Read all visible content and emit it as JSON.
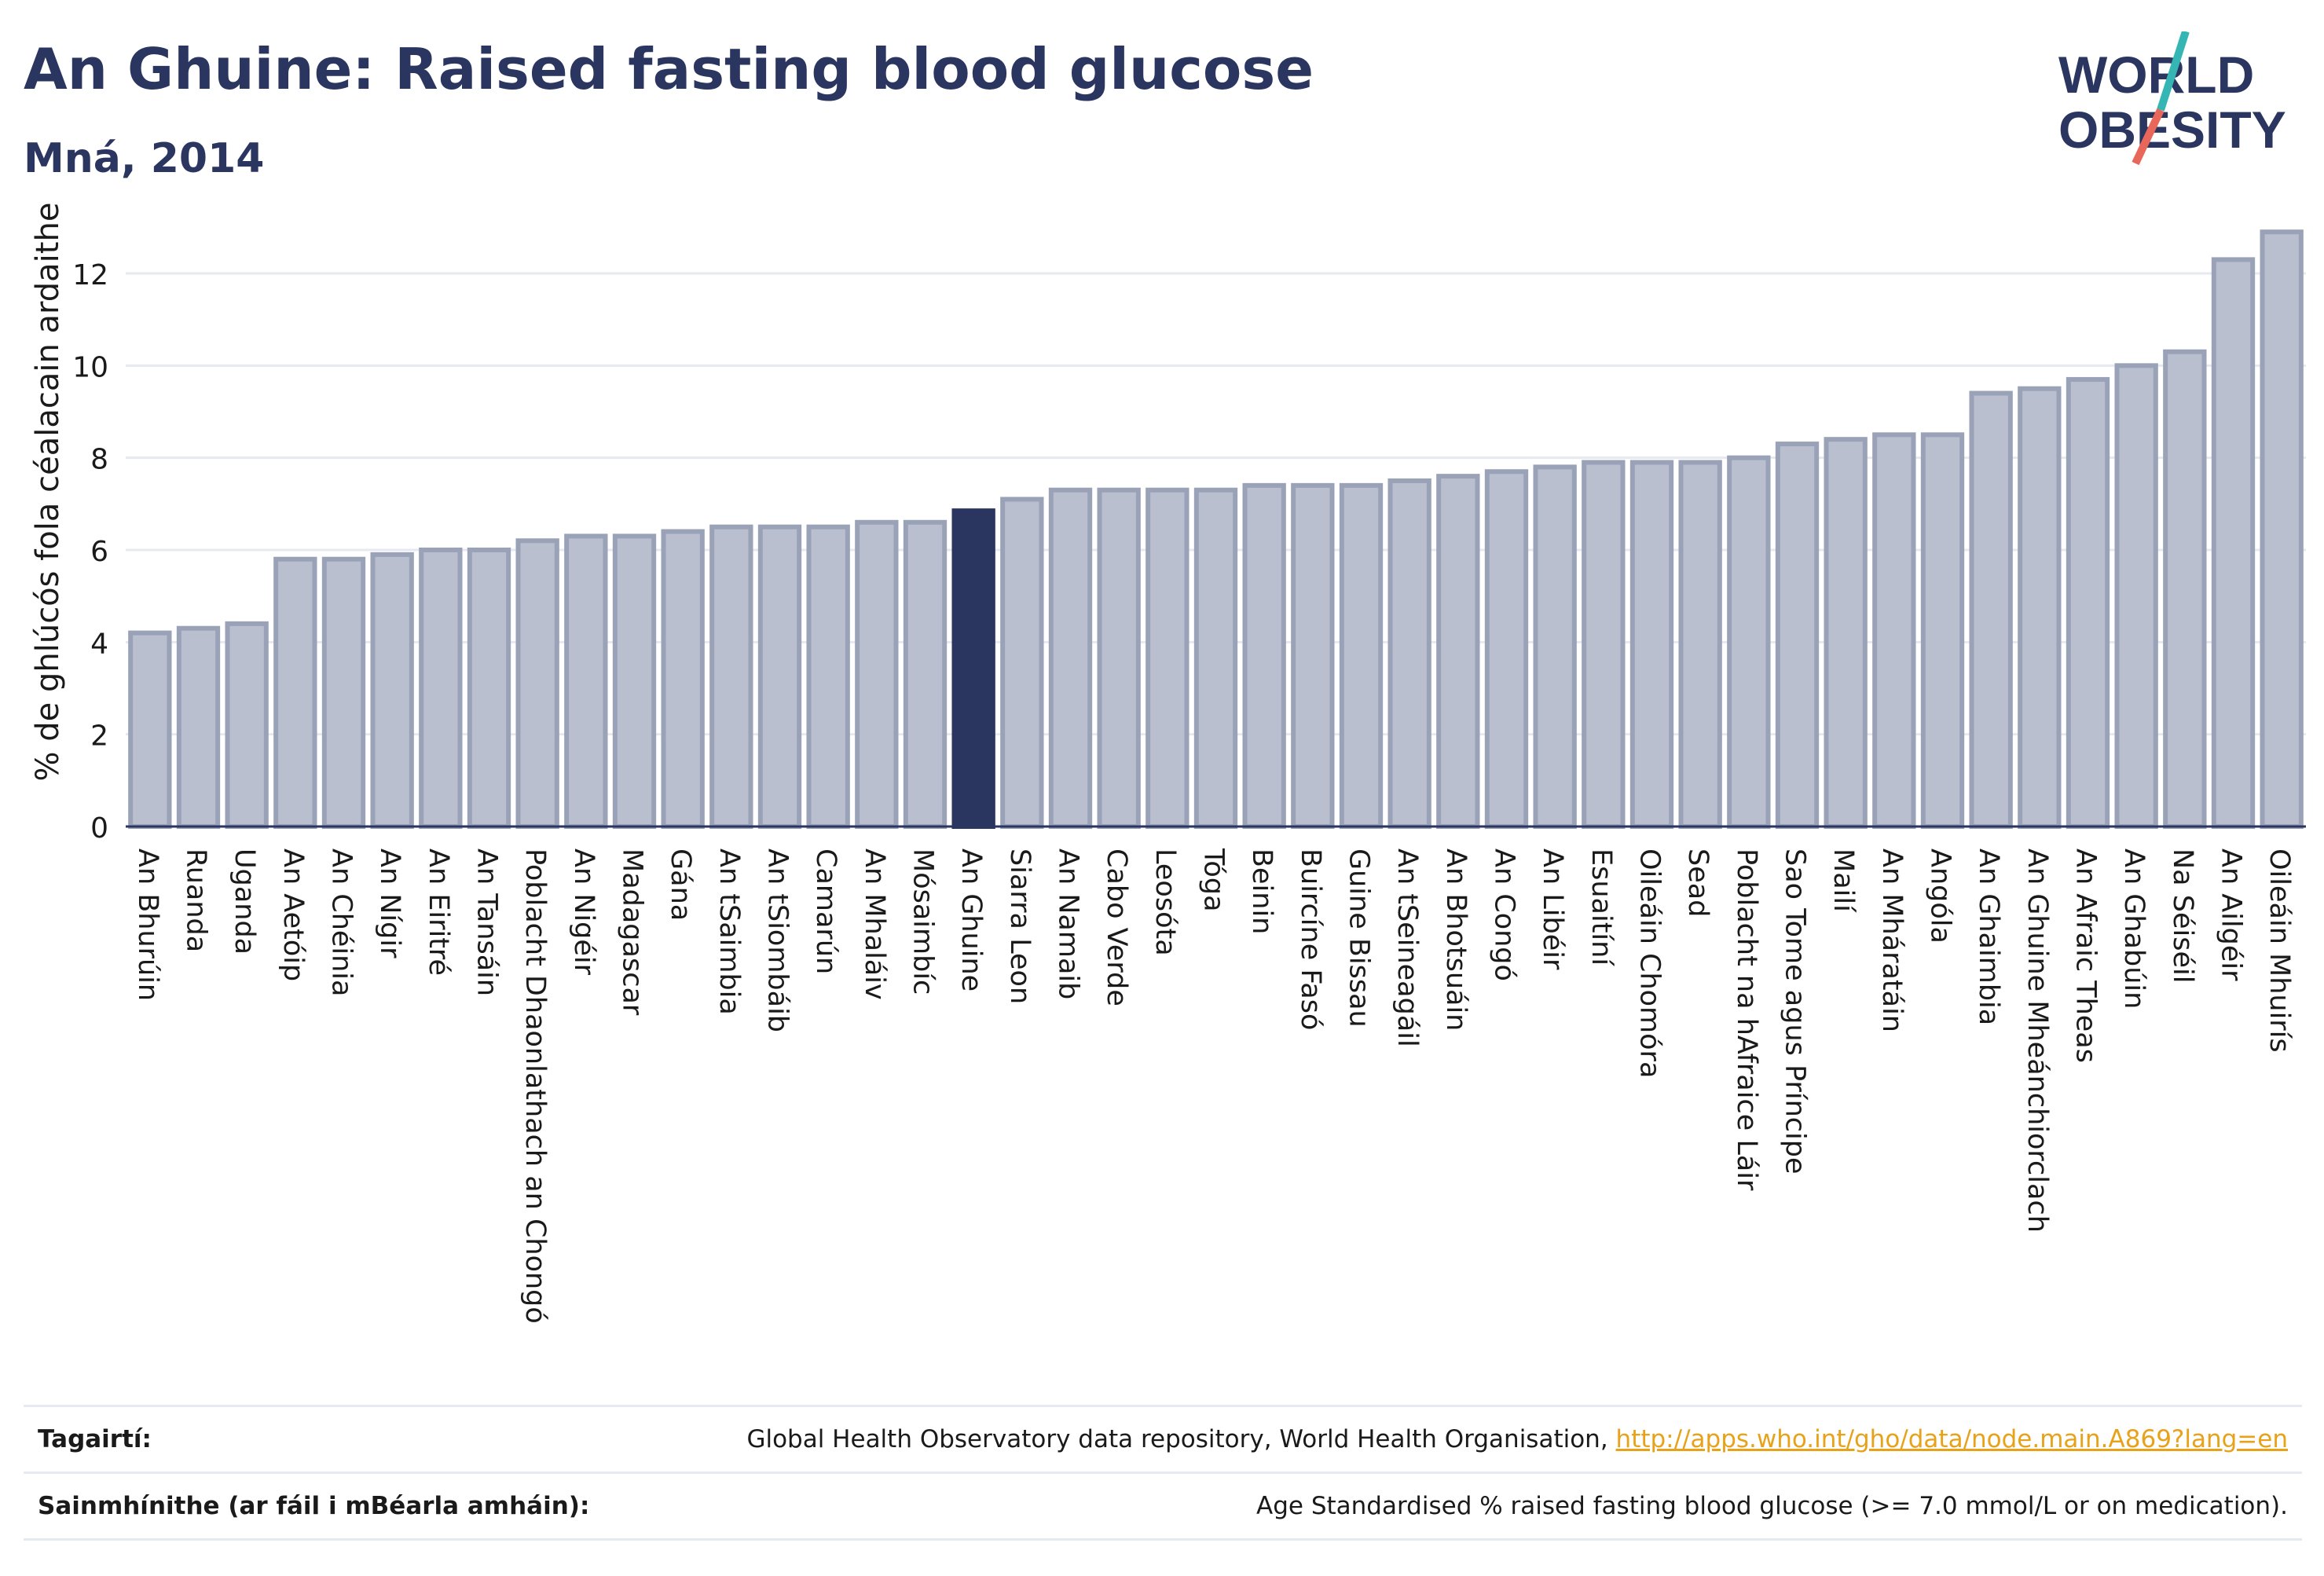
{
  "header": {
    "title": "An Ghuine: Raised fasting blood glucose",
    "subtitle": "Mná, 2014"
  },
  "logo": {
    "line1": "WORLD",
    "line2": "OBESITY"
  },
  "colors": {
    "bar": "#b9bfce",
    "bar_edge": "#9aa2b8",
    "highlight": "#2a3560",
    "text": "#2a3560",
    "link": "#e8a21a",
    "logo_teal": "#35b6b4",
    "logo_coral": "#e8675a"
  },
  "chart_data": {
    "type": "bar",
    "ylabel": "% de ghlúcós fola céalacain ardaithe",
    "ylim": [
      0,
      13.5
    ],
    "yticks": [
      0,
      2,
      4,
      6,
      8,
      10,
      12
    ],
    "highlight_category": "An Ghuine",
    "categories": [
      "An Bhurúin",
      "Ruanda",
      "Uganda",
      "An Aetóip",
      "An Chéinia",
      "An Nígir",
      "An Eiritré",
      "An Tansáin",
      "Poblacht Dhaonlathach an Chongó",
      "An Nigéir",
      "Madagascar",
      "Gána",
      "An tSaimbia",
      "An tSiombáib",
      "Camarún",
      "An Mhaláiv",
      "Mósaimbíc",
      "An Ghuine",
      "Siarra Leon",
      "An Namaib",
      "Cabo Verde",
      "Leosóta",
      "Tóga",
      "Beinin",
      "Buircíne Fasó",
      "Guine Bissau",
      "An tSeineagáil",
      "An Bhotsuáin",
      "An Congó",
      "An Libéir",
      "Esuaitíní",
      "Oileáin Chomóra",
      "Sead",
      "Poblacht na hAfraice Láir",
      "Sao Tome agus Príncipe",
      "Mailí",
      "An Mháratáin",
      "Angóla",
      "An Ghaimbia",
      "An Ghuine Mheánchiorclach",
      "An Afraic Theas",
      "An Ghabúin",
      "Na Séiséil",
      "An Ailgéir",
      "Oileáin Mhuirís"
    ],
    "values": [
      4.2,
      4.3,
      4.4,
      5.8,
      5.8,
      5.9,
      6.0,
      6.0,
      6.2,
      6.3,
      6.3,
      6.4,
      6.5,
      6.5,
      6.5,
      6.6,
      6.6,
      6.85,
      7.1,
      7.3,
      7.3,
      7.3,
      7.3,
      7.4,
      7.4,
      7.4,
      7.5,
      7.6,
      7.7,
      7.8,
      7.9,
      7.9,
      7.9,
      8.0,
      8.3,
      8.4,
      8.5,
      8.5,
      9.4,
      9.5,
      9.7,
      10.0,
      10.3,
      12.3,
      12.9
    ]
  },
  "footer": {
    "ref_label": "Tagairtí:",
    "ref_text": "Global Health Observatory data repository, World Health Organisation, ",
    "ref_link": "http://apps.who.int/gho/data/node.main.A869?lang=en",
    "def_label": "Sainmhínithe (ar fáil i mBéarla amháin):",
    "def_text": "Age Standardised % raised fasting blood glucose (>= 7.0 mmol/L or on medication)."
  }
}
